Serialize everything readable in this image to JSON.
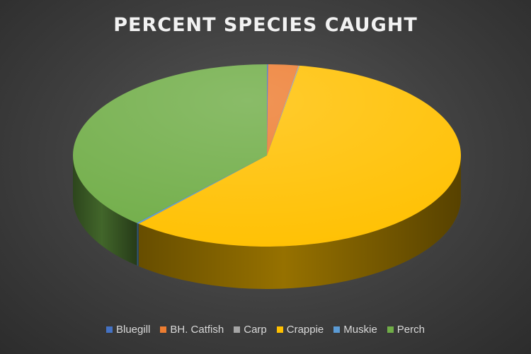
{
  "chart_data": {
    "type": "pie",
    "title": "PERCENT SPECIES CAUGHT",
    "categories": [
      "Bluegill",
      "BH. Catfish",
      "Carp",
      "Crappie",
      "Muskie",
      "Perch"
    ],
    "values": [
      0.1,
      2.5,
      0.1,
      58.8,
      0.2,
      38.3
    ],
    "colors": [
      "#4472c4",
      "#ed7d31",
      "#a5a5a5",
      "#ffc000",
      "#5b9bd5",
      "#70ad47"
    ],
    "legend_position": "bottom",
    "style": "3d"
  }
}
